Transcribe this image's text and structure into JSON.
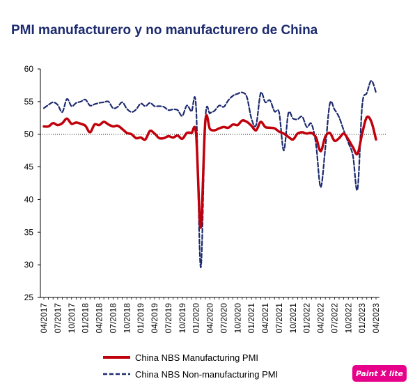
{
  "title": "PMI manufacturero y no manufacturero de China",
  "badge": "Paint X lite",
  "chart_data": {
    "type": "line",
    "ylim": [
      25,
      60
    ],
    "yticks": [
      25,
      30,
      35,
      40,
      45,
      50,
      55,
      60
    ],
    "reference_line": 50,
    "xtick_labels": [
      "04/2017",
      "07/2017",
      "10/2017",
      "01/2018",
      "04/2018",
      "07/2018",
      "10/2018",
      "01/2019",
      "04/2019",
      "07/2019",
      "10/2019",
      "01/2020",
      "04/2020",
      "07/2020",
      "10/2020",
      "01/2021",
      "04/2021",
      "07/2021",
      "10/2021",
      "01/2022",
      "04/2022",
      "07/2022",
      "10/2022",
      "01/2023",
      "04/2023"
    ],
    "x": [
      "04/2017",
      "05/2017",
      "06/2017",
      "07/2017",
      "08/2017",
      "09/2017",
      "10/2017",
      "11/2017",
      "12/2017",
      "01/2018",
      "02/2018",
      "03/2018",
      "04/2018",
      "05/2018",
      "06/2018",
      "07/2018",
      "08/2018",
      "09/2018",
      "10/2018",
      "11/2018",
      "12/2018",
      "01/2019",
      "02/2019",
      "03/2019",
      "04/2019",
      "05/2019",
      "06/2019",
      "07/2019",
      "08/2019",
      "09/2019",
      "10/2019",
      "11/2019",
      "12/2019",
      "01/2020",
      "02/2020",
      "03/2020",
      "04/2020",
      "05/2020",
      "06/2020",
      "07/2020",
      "08/2020",
      "09/2020",
      "10/2020",
      "11/2020",
      "12/2020",
      "01/2021",
      "02/2021",
      "03/2021",
      "04/2021",
      "05/2021",
      "06/2021",
      "07/2021",
      "08/2021",
      "09/2021",
      "10/2021",
      "11/2021",
      "12/2021",
      "01/2022",
      "02/2022",
      "03/2022",
      "04/2022",
      "05/2022",
      "06/2022",
      "07/2022",
      "08/2022",
      "09/2022",
      "10/2022",
      "11/2022",
      "12/2022",
      "01/2023",
      "02/2023",
      "03/2023",
      "04/2023"
    ],
    "series": [
      {
        "name": "China NBS Manufacturing PMI",
        "color": "#c0000b",
        "style": "solid",
        "values": [
          51.2,
          51.2,
          51.7,
          51.4,
          51.7,
          52.4,
          51.6,
          51.8,
          51.6,
          51.3,
          50.3,
          51.5,
          51.4,
          51.9,
          51.5,
          51.2,
          51.3,
          50.8,
          50.2,
          50.0,
          49.4,
          49.5,
          49.2,
          50.5,
          50.1,
          49.4,
          49.4,
          49.7,
          49.5,
          49.8,
          49.3,
          50.2,
          50.2,
          50.0,
          35.7,
          52.0,
          50.8,
          50.6,
          50.9,
          51.1,
          51.0,
          51.5,
          51.4,
          52.1,
          51.9,
          51.3,
          50.6,
          51.9,
          51.1,
          51.0,
          50.9,
          50.4,
          50.1,
          49.6,
          49.2,
          50.1,
          50.3,
          50.1,
          50.2,
          49.5,
          47.4,
          49.6,
          50.2,
          49.0,
          49.4,
          50.1,
          49.2,
          48.0,
          47.0,
          50.1,
          52.6,
          51.9,
          49.2
        ]
      },
      {
        "name": "China NBS Non-manufacturing PMI",
        "color": "#1c2a6e",
        "style": "dashed",
        "values": [
          54.0,
          54.5,
          54.9,
          54.5,
          53.4,
          55.4,
          54.3,
          54.8,
          55.0,
          55.3,
          54.4,
          54.6,
          54.8,
          54.9,
          55.0,
          54.0,
          54.2,
          54.9,
          53.9,
          53.4,
          53.8,
          54.7,
          54.3,
          54.8,
          54.3,
          54.3,
          54.2,
          53.7,
          53.8,
          53.7,
          52.8,
          54.4,
          53.5,
          54.1,
          29.6,
          52.3,
          53.2,
          53.6,
          54.4,
          54.2,
          55.2,
          55.9,
          56.2,
          56.4,
          55.7,
          52.4,
          51.4,
          56.3,
          54.9,
          55.2,
          53.5,
          53.3,
          47.5,
          53.2,
          52.4,
          52.3,
          52.7,
          51.1,
          51.6,
          48.4,
          41.9,
          47.8,
          54.7,
          53.8,
          52.6,
          50.6,
          48.7,
          46.7,
          41.6,
          54.4,
          56.3,
          58.2,
          56.4
        ]
      }
    ]
  }
}
